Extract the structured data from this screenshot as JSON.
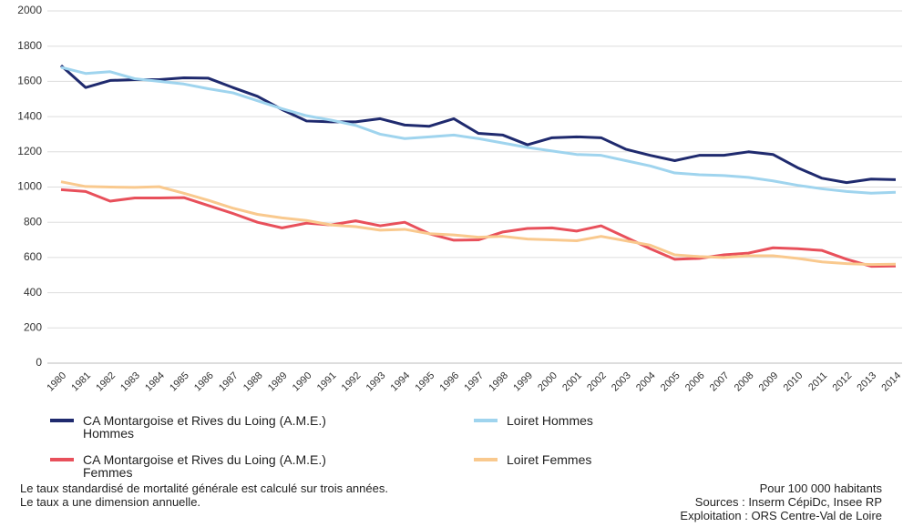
{
  "chart_data": {
    "type": "line",
    "categories": [
      "1980",
      "1981",
      "1982",
      "1983",
      "1984",
      "1985",
      "1986",
      "1987",
      "1988",
      "1989",
      "1990",
      "1991",
      "1992",
      "1993",
      "1994",
      "1995",
      "1996",
      "1997",
      "1998",
      "1999",
      "2000",
      "2001",
      "2002",
      "2003",
      "2004",
      "2005",
      "2006",
      "2007",
      "2008",
      "2009",
      "2010",
      "2011",
      "2012",
      "2013",
      "2014"
    ],
    "series": [
      {
        "name": "CA Montargoise et Rives du Loing (A.M.E.) Hommes",
        "color": "#1f2a6e",
        "values": [
          1690,
          1565,
          1605,
          1610,
          1610,
          1620,
          1618,
          1565,
          1515,
          1440,
          1375,
          1370,
          1370,
          1388,
          1352,
          1345,
          1388,
          1305,
          1295,
          1240,
          1280,
          1285,
          1280,
          1215,
          1180,
          1150,
          1180,
          1180,
          1200,
          1185,
          1110,
          1050,
          1025,
          1045,
          1042
        ]
      },
      {
        "name": "Loiret Hommes",
        "color": "#9fd4ee",
        "values": [
          1680,
          1645,
          1655,
          1615,
          1600,
          1585,
          1558,
          1535,
          1490,
          1445,
          1405,
          1380,
          1350,
          1300,
          1275,
          1285,
          1295,
          1275,
          1250,
          1225,
          1205,
          1185,
          1180,
          1150,
          1120,
          1080,
          1070,
          1065,
          1055,
          1035,
          1010,
          990,
          975,
          965,
          970
        ]
      },
      {
        "name": "CA Montargoise et Rives du Loing (A.M.E.) Femmes",
        "color": "#e8505b",
        "values": [
          985,
          975,
          920,
          938,
          938,
          940,
          895,
          850,
          800,
          768,
          795,
          785,
          808,
          780,
          800,
          735,
          698,
          700,
          745,
          765,
          768,
          750,
          780,
          715,
          650,
          590,
          595,
          615,
          625,
          655,
          650,
          640,
          590,
          550,
          552
        ]
      },
      {
        "name": "Loiret Femmes",
        "color": "#f9c98e",
        "values": [
          1030,
          1003,
          1000,
          998,
          1002,
          965,
          925,
          880,
          845,
          825,
          810,
          785,
          775,
          755,
          760,
          735,
          728,
          715,
          720,
          705,
          700,
          695,
          720,
          695,
          670,
          615,
          605,
          600,
          610,
          610,
          595,
          575,
          565,
          560,
          562
        ]
      }
    ],
    "ylim": [
      0,
      2000
    ],
    "yticks": [
      0,
      200,
      400,
      600,
      800,
      1000,
      1200,
      1400,
      1600,
      1800,
      2000
    ],
    "grid": true,
    "notes_left": [
      "Le taux standardisé de mortalité générale est calculé sur trois années.",
      "Le taux a une dimension annuelle."
    ],
    "notes_right": [
      "Pour 100 000 habitants",
      "Sources : Inserm CépiDc, Insee RP",
      "Exploitation : ORS Centre-Val de Loire"
    ]
  }
}
